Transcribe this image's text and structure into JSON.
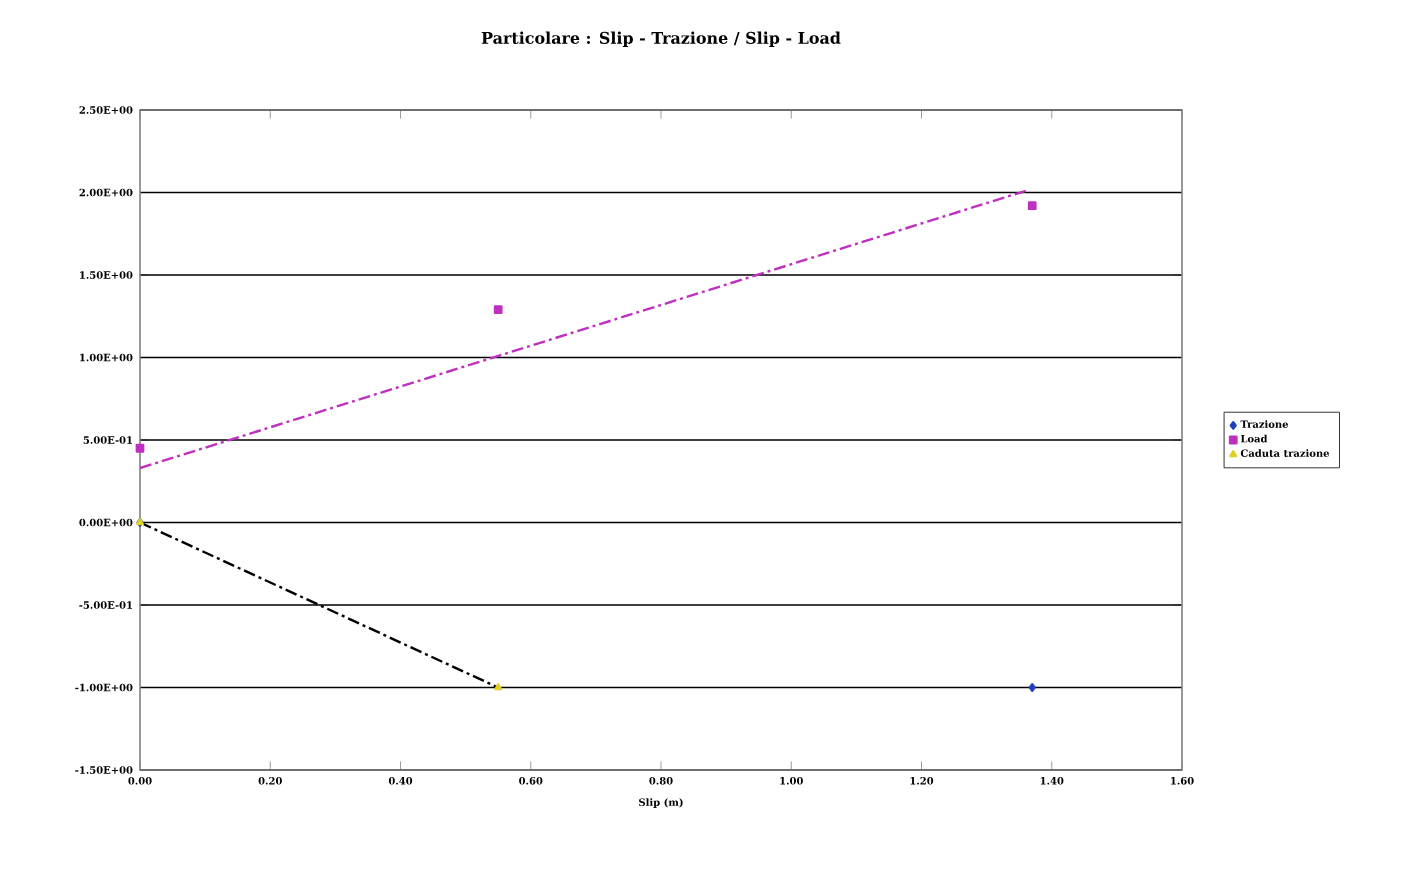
{
  "chart_data": {
    "type": "scatter",
    "title": "Particolare : Slip - Trazione / Slip - Load",
    "xlabel": "Slip (m)",
    "xlim": [
      0,
      1.6
    ],
    "ylim": [
      -1.5,
      2.5
    ],
    "xticks": [
      {
        "value": 0,
        "label": "0.00"
      },
      {
        "value": 0.2,
        "label": "0.20"
      },
      {
        "value": 0.4,
        "label": "0.40"
      },
      {
        "value": 0.6,
        "label": "0.60"
      },
      {
        "value": 0.8,
        "label": "0.80"
      },
      {
        "value": 1.0,
        "label": "1.00"
      },
      {
        "value": 1.2,
        "label": "1.20"
      },
      {
        "value": 1.4,
        "label": "1.40"
      },
      {
        "value": 1.6,
        "label": "1.60"
      }
    ],
    "yticks": [
      {
        "value": -1.5,
        "label": "-1.50E+00"
      },
      {
        "value": -1.0,
        "label": "-1.00E+00"
      },
      {
        "value": -0.5,
        "label": "-5.00E-01"
      },
      {
        "value": 0,
        "label": "0.00E+00"
      },
      {
        "value": 0.5,
        "label": "5.00E-01"
      },
      {
        "value": 1.0,
        "label": "1.00E+00"
      },
      {
        "value": 1.5,
        "label": "1.50E+00"
      },
      {
        "value": 2.0,
        "label": "2.00E+00"
      },
      {
        "value": 2.5,
        "label": "2.50E+00"
      }
    ],
    "grid": "y",
    "legend": "right",
    "series": [
      {
        "name": "Trazione",
        "color": "#2040c0",
        "marker": "diamond",
        "x": [
          0,
          1.37
        ],
        "values": [
          0,
          -1.0
        ]
      },
      {
        "name": "Load",
        "color": "#c030c0",
        "marker": "square",
        "x": [
          0,
          0.55,
          1.37
        ],
        "values": [
          0.45,
          1.29,
          1.92
        ]
      },
      {
        "name": "Caduta trazione",
        "color": "#e0d020",
        "marker": "triangle",
        "x": [
          0,
          0.55
        ],
        "values": [
          0,
          -1.0
        ]
      },
      {
        "type": "line",
        "color": "#c030c0",
        "line_style": "dashdot",
        "marker": "none",
        "x": [
          0,
          1.36
        ],
        "values": [
          0.33,
          2.01
        ]
      },
      {
        "type": "line",
        "color": "#000000",
        "line_style": "dashdot",
        "marker": "none",
        "x": [
          0,
          0.55
        ],
        "values": [
          0,
          -1.0
        ]
      }
    ]
  }
}
